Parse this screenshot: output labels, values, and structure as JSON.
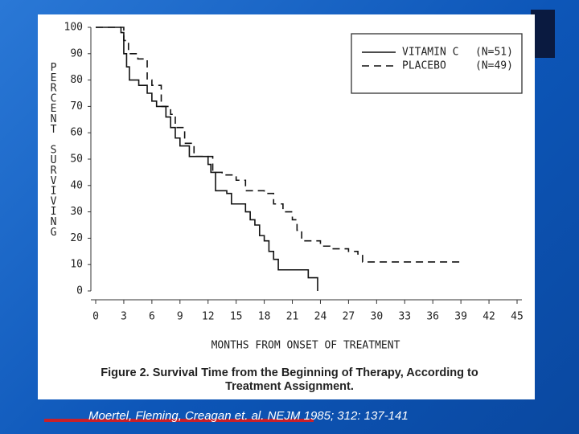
{
  "chart_data": {
    "type": "step",
    "ylabel": "PERCENT SURVIVING",
    "xlabel": "MONTHS FROM ONSET OF TREATMENT",
    "caption": "Figure 2. Survival Time from the Beginning of Therapy, According to Treatment Assignment.",
    "citation": "Moertel, Fleming, Creagan et. al. NEJM 1985; 312: 137-141",
    "xlim": [
      0,
      45
    ],
    "ylim": [
      0,
      100
    ],
    "xticks": [
      0,
      3,
      6,
      9,
      12,
      15,
      18,
      21,
      24,
      27,
      30,
      33,
      36,
      39,
      42,
      45
    ],
    "yticks": [
      0,
      10,
      20,
      30,
      40,
      50,
      60,
      70,
      80,
      90,
      100
    ],
    "legend": "upper right",
    "series": [
      {
        "name": "VITAMIN C",
        "n_label": "(N=51)",
        "color": "#111111",
        "style": "solid",
        "x": [
          0,
          2.7,
          3,
          3.3,
          3.6,
          4.6,
          5.5,
          6,
          6.5,
          7.5,
          8,
          8.5,
          9,
          10,
          12,
          12.3,
          12.8,
          14,
          14.5,
          16,
          16.5,
          17,
          17.5,
          18,
          18.5,
          19,
          19.5,
          22.7,
          23.7
        ],
        "values": [
          100,
          98,
          90,
          85,
          80,
          78,
          75,
          72,
          70,
          66,
          62,
          58,
          55,
          51,
          48,
          45,
          38,
          37,
          33,
          30,
          27,
          25,
          21,
          19,
          15,
          12,
          8,
          5,
          0
        ]
      },
      {
        "name": "PLACEBO",
        "n_label": "(N=49)",
        "color": "#111111",
        "style": "dashed",
        "x": [
          0,
          3,
          3.5,
          4.5,
          5.5,
          6,
          7,
          8,
          8.5,
          9.5,
          10.5,
          12.5,
          13.5,
          15,
          16,
          18,
          19,
          20,
          21,
          21.5,
          22,
          24,
          25,
          27,
          28,
          28.5,
          39
        ],
        "values": [
          100,
          95,
          90,
          88,
          80,
          78,
          70,
          67,
          62,
          56,
          51,
          45,
          44,
          42,
          38,
          37,
          33,
          30,
          27,
          23,
          19,
          17,
          16,
          15,
          14,
          11,
          11
        ]
      }
    ]
  }
}
